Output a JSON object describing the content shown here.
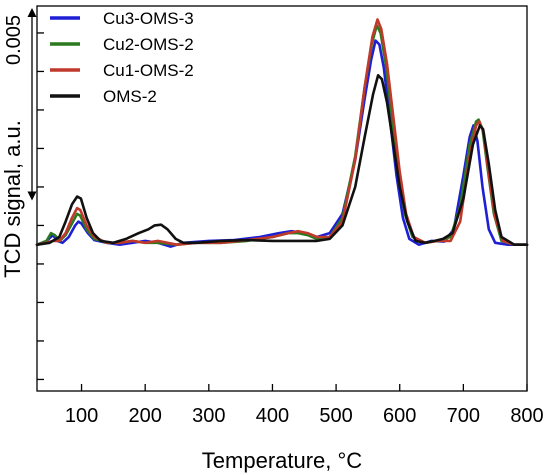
{
  "chart_data": {
    "type": "line",
    "xlabel": "Temperature, °C",
    "ylabel": "TCD signal, a.u.",
    "xlim": [
      30,
      800
    ],
    "ylim": [
      -0.0038,
      0.0062
    ],
    "x_ticks": [
      100,
      200,
      300,
      400,
      500,
      600,
      700,
      800
    ],
    "x_tick_labels": [
      "100",
      "200",
      "300",
      "400",
      "500",
      "600",
      "700",
      "800"
    ],
    "y_ticks": [
      -0.0035,
      -0.0025,
      -0.0015,
      -0.0005,
      0.0005,
      0.0015,
      0.0025,
      0.0035,
      0.0045,
      0.0055
    ],
    "grid": false,
    "legend_position": "top-left",
    "scale_bar": {
      "label": "0.005",
      "value": 0.005
    },
    "series": [
      {
        "name": "Cu3-OMS-3",
        "color": "#1f1fd6",
        "points": [
          [
            30,
            0
          ],
          [
            45,
            0.0001
          ],
          [
            55,
            0.00025
          ],
          [
            62,
            0.0001
          ],
          [
            70,
            5e-05
          ],
          [
            80,
            0.0002
          ],
          [
            90,
            0.0005
          ],
          [
            95,
            0.0006
          ],
          [
            100,
            0.00055
          ],
          [
            110,
            0.0003
          ],
          [
            120,
            0.00012
          ],
          [
            140,
            5e-05
          ],
          [
            160,
            0
          ],
          [
            180,
            5e-05
          ],
          [
            200,
            0.0001
          ],
          [
            220,
            5e-05
          ],
          [
            240,
            -5e-05
          ],
          [
            260,
            5e-05
          ],
          [
            300,
            0.0001
          ],
          [
            340,
            0.00012
          ],
          [
            380,
            0.0002
          ],
          [
            410,
            0.0003
          ],
          [
            430,
            0.00035
          ],
          [
            450,
            0.0003
          ],
          [
            470,
            0.0002
          ],
          [
            490,
            0.0003
          ],
          [
            510,
            0.0008
          ],
          [
            530,
            0.0022
          ],
          [
            545,
            0.0038
          ],
          [
            555,
            0.0048
          ],
          [
            562,
            0.0053
          ],
          [
            568,
            0.0052
          ],
          [
            575,
            0.0046
          ],
          [
            585,
            0.0032
          ],
          [
            595,
            0.0018
          ],
          [
            605,
            0.0007
          ],
          [
            615,
            0.00015
          ],
          [
            630,
            0
          ],
          [
            650,
            0.0001
          ],
          [
            670,
            8e-05
          ],
          [
            685,
            0.0004
          ],
          [
            700,
            0.0018
          ],
          [
            710,
            0.0028
          ],
          [
            716,
            0.0031
          ],
          [
            722,
            0.0027
          ],
          [
            730,
            0.0015
          ],
          [
            740,
            0.0004
          ],
          [
            750,
            5e-05
          ],
          [
            770,
            0
          ],
          [
            800,
            0
          ]
        ]
      },
      {
        "name": "Cu2-OMS-2",
        "color": "#2b7a1f",
        "points": [
          [
            30,
            0
          ],
          [
            45,
            0.0001
          ],
          [
            52,
            0.0003
          ],
          [
            58,
            0.00025
          ],
          [
            66,
            0.0001
          ],
          [
            75,
            0.00025
          ],
          [
            85,
            0.00055
          ],
          [
            93,
            0.0008
          ],
          [
            98,
            0.00075
          ],
          [
            108,
            0.0004
          ],
          [
            120,
            0.00015
          ],
          [
            140,
            5e-05
          ],
          [
            160,
            5e-05
          ],
          [
            180,
            0.0001
          ],
          [
            200,
            5e-05
          ],
          [
            220,
            5e-05
          ],
          [
            250,
            0
          ],
          [
            280,
            5e-05
          ],
          [
            320,
            5e-05
          ],
          [
            360,
            0.0001
          ],
          [
            400,
            0.0002
          ],
          [
            425,
            0.0003
          ],
          [
            440,
            0.0003
          ],
          [
            455,
            0.00025
          ],
          [
            470,
            0.00015
          ],
          [
            490,
            0.0002
          ],
          [
            510,
            0.0007
          ],
          [
            530,
            0.0023
          ],
          [
            545,
            0.0041
          ],
          [
            556,
            0.0052
          ],
          [
            564,
            0.0057
          ],
          [
            570,
            0.0055
          ],
          [
            578,
            0.0047
          ],
          [
            588,
            0.0033
          ],
          [
            598,
            0.0019
          ],
          [
            608,
            0.0008
          ],
          [
            620,
            0.0002
          ],
          [
            640,
            5e-05
          ],
          [
            660,
            0.0001
          ],
          [
            680,
            0.0002
          ],
          [
            695,
            0.001
          ],
          [
            710,
            0.0026
          ],
          [
            720,
            0.0032
          ],
          [
            724,
            0.00325
          ],
          [
            730,
            0.003
          ],
          [
            738,
            0.002
          ],
          [
            748,
            0.0008
          ],
          [
            760,
            0.0001
          ],
          [
            780,
            0
          ],
          [
            800,
            0
          ]
        ]
      },
      {
        "name": "Cu1-OMS-2",
        "color": "#c0392b",
        "points": [
          [
            30,
            0
          ],
          [
            45,
            5e-05
          ],
          [
            55,
            0.0001
          ],
          [
            65,
            0.0001
          ],
          [
            75,
            0.0003
          ],
          [
            85,
            0.0007
          ],
          [
            93,
            0.00095
          ],
          [
            98,
            0.0009
          ],
          [
            108,
            0.0005
          ],
          [
            120,
            0.0002
          ],
          [
            140,
            5e-05
          ],
          [
            160,
            5e-05
          ],
          [
            180,
            0.0001
          ],
          [
            200,
            5e-05
          ],
          [
            220,
            0.0001
          ],
          [
            250,
            0
          ],
          [
            280,
            5e-05
          ],
          [
            320,
            5e-05
          ],
          [
            360,
            0.00012
          ],
          [
            400,
            0.0002
          ],
          [
            425,
            0.0003
          ],
          [
            440,
            0.00035
          ],
          [
            455,
            0.0003
          ],
          [
            470,
            0.0002
          ],
          [
            490,
            0.0002
          ],
          [
            510,
            0.0006
          ],
          [
            530,
            0.0022
          ],
          [
            545,
            0.0041
          ],
          [
            557,
            0.0054
          ],
          [
            565,
            0.00585
          ],
          [
            571,
            0.0056
          ],
          [
            580,
            0.0047
          ],
          [
            590,
            0.0033
          ],
          [
            600,
            0.0019
          ],
          [
            610,
            0.0008
          ],
          [
            622,
            0.0002
          ],
          [
            640,
            5e-05
          ],
          [
            660,
            0.0001
          ],
          [
            680,
            0.0001
          ],
          [
            695,
            0.0006
          ],
          [
            710,
            0.0023
          ],
          [
            720,
            0.0031
          ],
          [
            725,
            0.0032
          ],
          [
            732,
            0.0029
          ],
          [
            740,
            0.0018
          ],
          [
            750,
            0.0007
          ],
          [
            762,
            0.0001
          ],
          [
            780,
            0
          ],
          [
            800,
            0
          ]
        ]
      },
      {
        "name": "OMS-2",
        "color": "#111111",
        "points": [
          [
            30,
            0
          ],
          [
            50,
            5e-05
          ],
          [
            65,
            0.0002
          ],
          [
            75,
            0.0006
          ],
          [
            85,
            0.00105
          ],
          [
            93,
            0.00125
          ],
          [
            99,
            0.0012
          ],
          [
            108,
            0.0007
          ],
          [
            118,
            0.0003
          ],
          [
            130,
            0.0001
          ],
          [
            150,
            5e-05
          ],
          [
            170,
            0.00015
          ],
          [
            190,
            0.0003
          ],
          [
            205,
            0.0004
          ],
          [
            215,
            0.0005
          ],
          [
            225,
            0.00052
          ],
          [
            235,
            0.0004
          ],
          [
            248,
            0.00015
          ],
          [
            260,
            5e-05
          ],
          [
            280,
            5e-05
          ],
          [
            320,
            0.0001
          ],
          [
            360,
            0.00012
          ],
          [
            400,
            0.0001
          ],
          [
            440,
            0.0001
          ],
          [
            470,
            0.0001
          ],
          [
            490,
            0.00015
          ],
          [
            510,
            0.0005
          ],
          [
            530,
            0.0015
          ],
          [
            545,
            0.0028
          ],
          [
            558,
            0.0039
          ],
          [
            566,
            0.0044
          ],
          [
            572,
            0.0043
          ],
          [
            580,
            0.0037
          ],
          [
            590,
            0.0026
          ],
          [
            600,
            0.0015
          ],
          [
            612,
            0.0006
          ],
          [
            625,
            0.0001
          ],
          [
            640,
            5e-05
          ],
          [
            655,
            0.0001
          ],
          [
            668,
            0.00015
          ],
          [
            683,
            0.0003
          ],
          [
            700,
            0.0012
          ],
          [
            715,
            0.0026
          ],
          [
            726,
            0.0031
          ],
          [
            731,
            0.003
          ],
          [
            740,
            0.0021
          ],
          [
            750,
            0.0009
          ],
          [
            760,
            0.0002
          ],
          [
            780,
            0
          ],
          [
            800,
            0
          ]
        ]
      }
    ]
  }
}
